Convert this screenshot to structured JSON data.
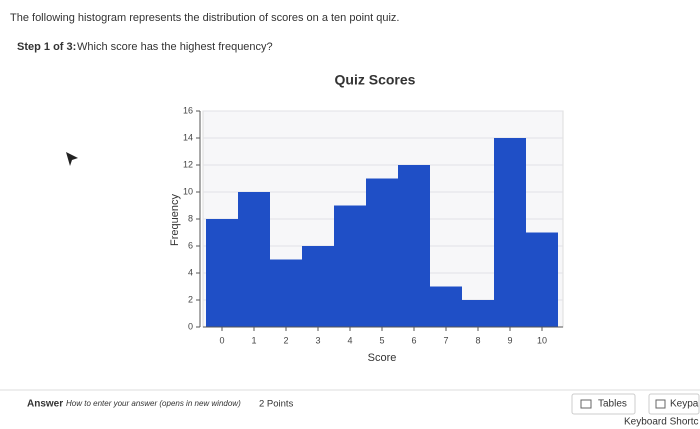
{
  "question": {
    "text": "The following histogram represents the distribution of scores on a ten point quiz.",
    "step_label": "Step 1 of 3:",
    "step_text": "Which score has the highest frequency?"
  },
  "chart_data": {
    "type": "bar",
    "title": "Quiz Scores",
    "x_label": "Score",
    "y_label": "Frequency",
    "categories": [
      "0",
      "1",
      "2",
      "3",
      "4",
      "5",
      "6",
      "7",
      "8",
      "9",
      "10"
    ],
    "values": [
      8,
      10,
      5,
      6,
      9,
      11,
      12,
      3,
      2,
      14,
      7
    ],
    "color": "#1f4fc6",
    "ylim": [
      0,
      16
    ],
    "yticks": [
      0,
      2,
      4,
      6,
      8,
      10,
      12,
      14,
      16
    ],
    "grid": true
  },
  "footer": {
    "answer_label": "Answer",
    "help_link": "How to enter your answer (opens in new window)",
    "points": "2 Points",
    "tables_button": "Tables",
    "keypad_button": "Keypa",
    "shortcuts_link": "Keyboard Shortc"
  }
}
